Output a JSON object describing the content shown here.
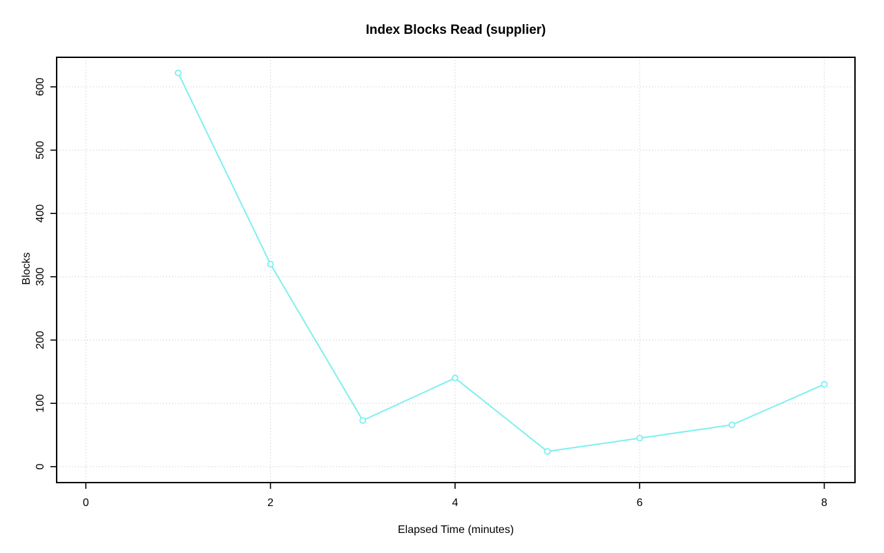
{
  "chart_data": {
    "type": "line",
    "title": "Index Blocks Read (supplier)",
    "xlabel": "Elapsed Time (minutes)",
    "ylabel": "Blocks",
    "x": [
      1,
      2,
      3,
      4,
      5,
      6,
      7,
      8
    ],
    "y": [
      622,
      320,
      73,
      140,
      24,
      45,
      66,
      130
    ],
    "x_ticks": [
      0,
      2,
      4,
      6,
      8
    ],
    "y_ticks": [
      0,
      100,
      200,
      300,
      400,
      500,
      600
    ],
    "xlim": [
      0,
      8
    ],
    "ylim": [
      0,
      622
    ],
    "grid": "dotted",
    "legend": "none",
    "marker": "open-circle",
    "colors": {
      "line": "#7FEFEF",
      "grid": "#D0D0D0",
      "axis": "#000000",
      "text": "#000000",
      "background": "#FFFFFF"
    }
  }
}
